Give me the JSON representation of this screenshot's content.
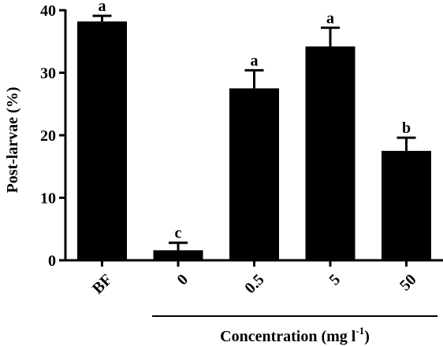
{
  "chart_data": {
    "type": "bar",
    "categories": [
      "BF",
      "0",
      "0.5",
      "5",
      "50"
    ],
    "values": [
      38.2,
      1.6,
      27.5,
      34.2,
      17.5
    ],
    "errors": [
      0.9,
      1.2,
      2.9,
      3.0,
      2.1
    ],
    "significance_letters": [
      "a",
      "c",
      "a",
      "a",
      "b"
    ],
    "title": "",
    "ylabel": "Post-larvae (%)",
    "xlabel": "Concentration (mg l",
    "xlabel_superscript": "-1",
    "xlabel_suffix": ")",
    "ylim": [
      0,
      40
    ],
    "yticks": [
      "0",
      "10",
      "20",
      "30",
      "40"
    ],
    "grid": false,
    "legend": "none",
    "colors": {
      "bar": "#000000",
      "axis": "#000000",
      "background": "#ffffff"
    }
  }
}
